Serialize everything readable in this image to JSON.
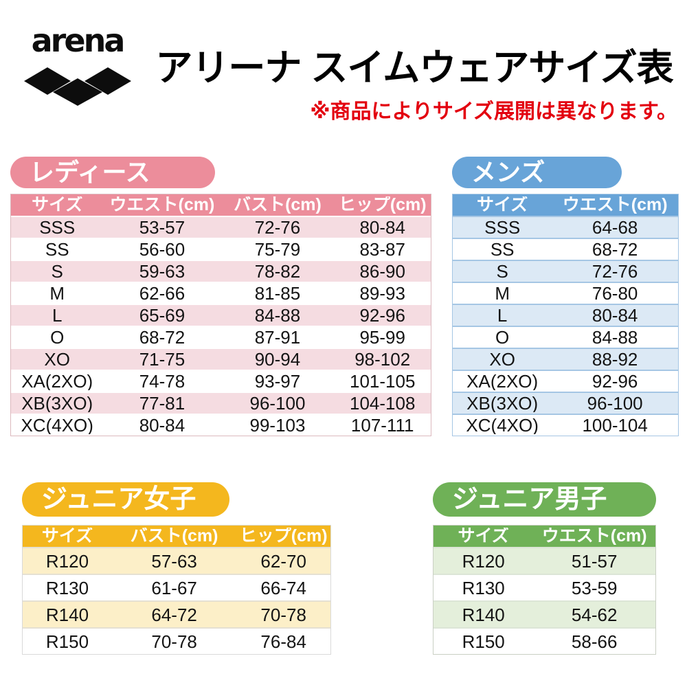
{
  "header": {
    "logo_text": "arena",
    "title": "アリーナ スイムウェアサイズ表",
    "note": "※商品によりサイズ展開は異なります。"
  },
  "colors": {
    "note_red": "#E3000F",
    "ladies": "#EC8D9B",
    "ladies_light": "#F5DCE1",
    "ladies_line": "#FFFFFF",
    "ladies_border": "#DCB9BE",
    "mens": "#68A4D8",
    "mens_light": "#DCE9F5",
    "mens_line": "#A5C6E4",
    "mens_border": "#A5C6E4",
    "junior_girls": "#F4B71E",
    "junior_girls_light": "#FCEFC8",
    "junior_girls_line": "#E5E0D2",
    "junior_girls_border": "#D9D9D9",
    "junior_boys": "#6FB157",
    "junior_boys_light": "#E4EFDB",
    "junior_boys_line": "#DCE5D6",
    "junior_boys_border": "#C9CFC3"
  },
  "tables": {
    "ladies": {
      "label": "レディース",
      "columns": [
        "サイズ",
        "ウエスト(cm)",
        "バスト(cm)",
        "ヒップ(cm)"
      ],
      "rows": [
        [
          "SSS",
          "53-57",
          "72-76",
          "80-84"
        ],
        [
          "SS",
          "56-60",
          "75-79",
          "83-87"
        ],
        [
          "S",
          "59-63",
          "78-82",
          "86-90"
        ],
        [
          "M",
          "62-66",
          "81-85",
          "89-93"
        ],
        [
          "L",
          "65-69",
          "84-88",
          "92-96"
        ],
        [
          "O",
          "68-72",
          "87-91",
          "95-99"
        ],
        [
          "XO",
          "71-75",
          "90-94",
          "98-102"
        ],
        [
          "XA(2XO)",
          "74-78",
          "93-97",
          "101-105"
        ],
        [
          "XB(3XO)",
          "77-81",
          "96-100",
          "104-108"
        ],
        [
          "XC(4XO)",
          "80-84",
          "99-103",
          "107-111"
        ]
      ]
    },
    "mens": {
      "label": "メンズ",
      "columns": [
        "サイズ",
        "ウエスト(cm)"
      ],
      "rows": [
        [
          "SSS",
          "64-68"
        ],
        [
          "SS",
          "68-72"
        ],
        [
          "S",
          "72-76"
        ],
        [
          "M",
          "76-80"
        ],
        [
          "L",
          "80-84"
        ],
        [
          "O",
          "84-88"
        ],
        [
          "XO",
          "88-92"
        ],
        [
          "XA(2XO)",
          "92-96"
        ],
        [
          "XB(3XO)",
          "96-100"
        ],
        [
          "XC(4XO)",
          "100-104"
        ]
      ]
    },
    "junior_girls": {
      "label": "ジュニア女子",
      "columns": [
        "サイズ",
        "バスト(cm)",
        "ヒップ(cm)"
      ],
      "rows": [
        [
          "R120",
          "57-63",
          "62-70"
        ],
        [
          "R130",
          "61-67",
          "66-74"
        ],
        [
          "R140",
          "64-72",
          "70-78"
        ],
        [
          "R150",
          "70-78",
          "76-84"
        ]
      ]
    },
    "junior_boys": {
      "label": "ジュニア男子",
      "columns": [
        "サイズ",
        "ウエスト(cm)"
      ],
      "rows": [
        [
          "R120",
          "51-57"
        ],
        [
          "R130",
          "53-59"
        ],
        [
          "R140",
          "54-62"
        ],
        [
          "R150",
          "58-66"
        ]
      ]
    }
  }
}
